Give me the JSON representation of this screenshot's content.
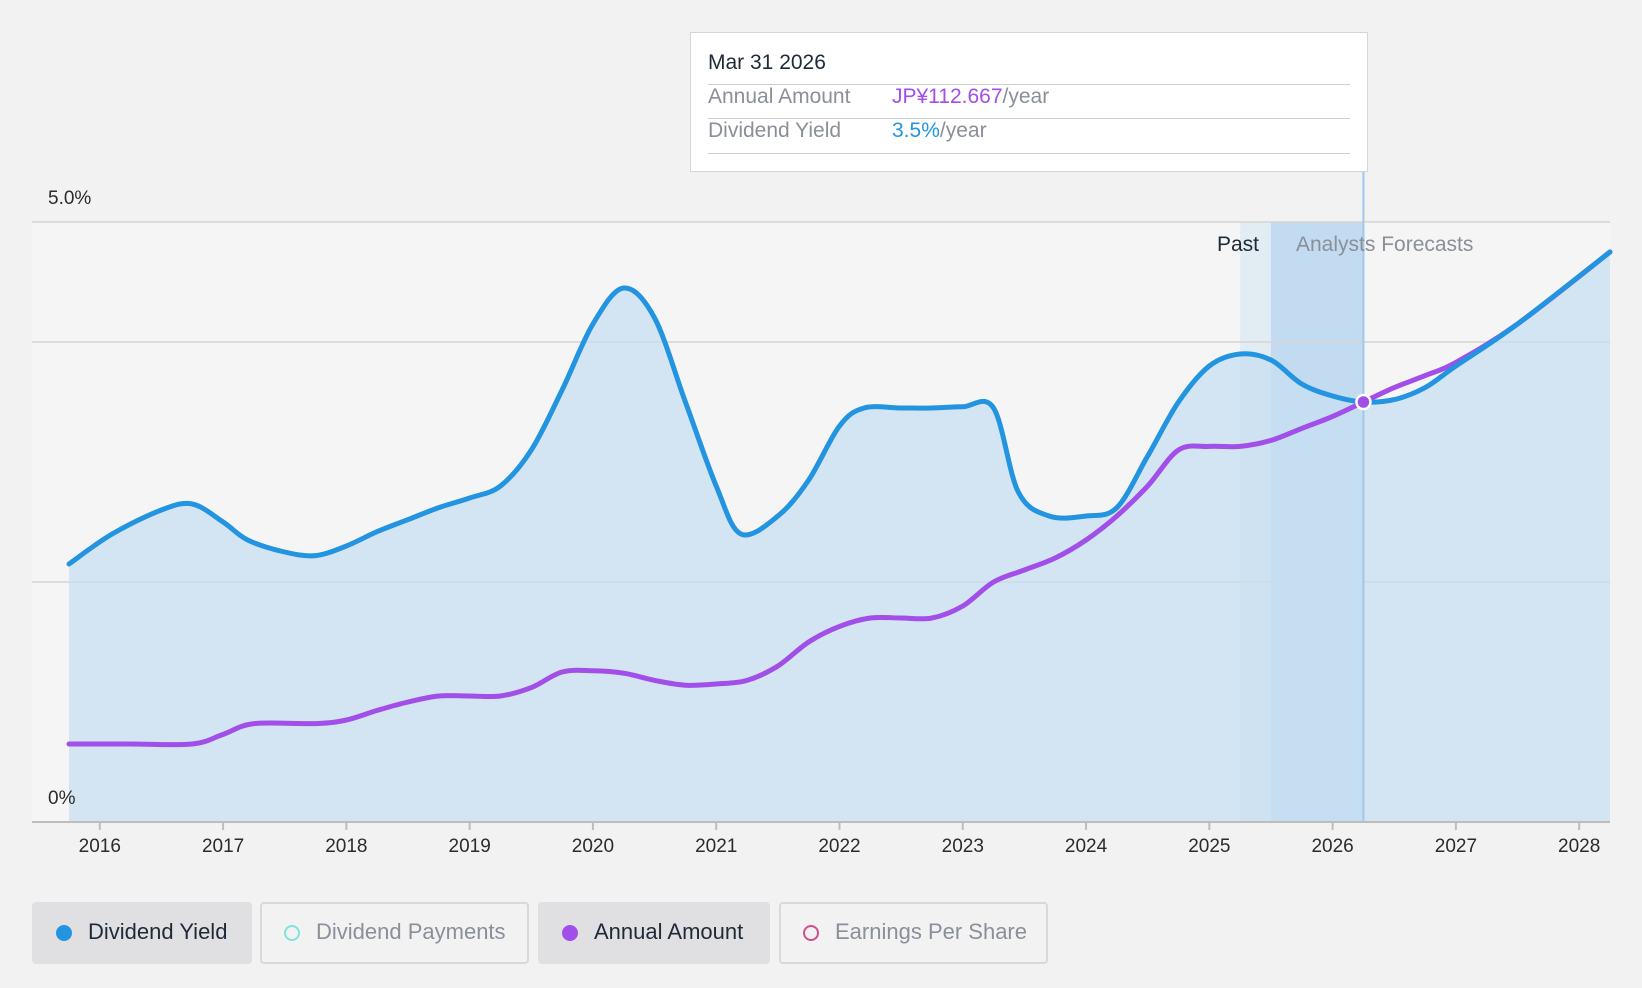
{
  "tooltip": {
    "date": "Mar 31 2026",
    "rows": [
      {
        "label": "Annual Amount",
        "value": "JP¥112.667",
        "unit": "/year",
        "color": "#a24ee8"
      },
      {
        "label": "Dividend Yield",
        "value": "3.5%",
        "unit": "/year",
        "color": "#2394df"
      }
    ]
  },
  "period_labels": {
    "past": "Past",
    "forecast": "Analysts Forecasts"
  },
  "legend": [
    {
      "label": "Dividend Yield",
      "color": "#2394df",
      "active": true
    },
    {
      "label": "Dividend Payments",
      "color": "#7fe3d6",
      "active": false
    },
    {
      "label": "Annual Amount",
      "color": "#a24ee8",
      "active": true
    },
    {
      "label": "Earnings Per Share",
      "color": "#d14f8c",
      "active": false
    }
  ],
  "colors": {
    "yield": "#2394df",
    "amount": "#a24ee8",
    "area": "#c7dff1",
    "grid": "#d4d4d4"
  },
  "chart_data": {
    "type": "line",
    "y_tick_labels": [
      "0%",
      "5.0%"
    ],
    "ylim": [
      0,
      5.0
    ],
    "x_ticks": [
      "2016",
      "2017",
      "2018",
      "2019",
      "2020",
      "2021",
      "2022",
      "2023",
      "2024",
      "2025",
      "2026",
      "2027",
      "2028"
    ],
    "xlim": [
      2015.45,
      2028.25
    ],
    "past_end": 2025.25,
    "forecast_start": 2025.5,
    "highlight_x": 2026.25,
    "grid_values": [
      2.0,
      4.0
    ],
    "series": [
      {
        "name": "Dividend Yield",
        "x": [
          2015.75,
          2016.1,
          2016.5,
          2016.75,
          2017.0,
          2017.2,
          2017.5,
          2017.75,
          2018.0,
          2018.25,
          2018.5,
          2018.75,
          2019.0,
          2019.25,
          2019.5,
          2019.75,
          2020.0,
          2020.25,
          2020.5,
          2020.75,
          2021.0,
          2021.2,
          2021.5,
          2021.75,
          2022.0,
          2022.2,
          2022.5,
          2022.75,
          2023.0,
          2023.25,
          2023.45,
          2023.7,
          2024.0,
          2024.25,
          2024.5,
          2024.75,
          2025.0,
          2025.25,
          2025.5,
          2025.75,
          2026.0,
          2026.25,
          2026.5,
          2026.75,
          2027.0,
          2027.5,
          2028.25
        ],
        "y": [
          2.15,
          2.4,
          2.6,
          2.65,
          2.5,
          2.35,
          2.25,
          2.22,
          2.3,
          2.42,
          2.52,
          2.62,
          2.7,
          2.8,
          3.1,
          3.6,
          4.15,
          4.45,
          4.2,
          3.5,
          2.8,
          2.4,
          2.55,
          2.85,
          3.3,
          3.45,
          3.45,
          3.45,
          3.46,
          3.45,
          2.75,
          2.55,
          2.55,
          2.62,
          3.05,
          3.5,
          3.8,
          3.9,
          3.85,
          3.65,
          3.55,
          3.5,
          3.52,
          3.62,
          3.8,
          4.15,
          4.75
        ]
      },
      {
        "name": "Annual Amount",
        "x": [
          2015.75,
          2016.25,
          2016.75,
          2017.0,
          2017.25,
          2017.75,
          2018.0,
          2018.25,
          2018.5,
          2018.75,
          2019.0,
          2019.25,
          2019.5,
          2019.75,
          2020.0,
          2020.25,
          2020.5,
          2020.75,
          2021.0,
          2021.25,
          2021.5,
          2021.75,
          2022.0,
          2022.25,
          2022.5,
          2022.75,
          2023.0,
          2023.25,
          2023.5,
          2023.75,
          2024.0,
          2024.25,
          2024.5,
          2024.75,
          2025.0,
          2025.25,
          2025.5,
          2025.75,
          2026.0,
          2026.25,
          2026.5,
          2026.75,
          2027.0,
          2027.5,
          2028.25
        ],
        "y": [
          0.65,
          0.65,
          0.65,
          0.73,
          0.82,
          0.82,
          0.85,
          0.93,
          1.0,
          1.05,
          1.05,
          1.05,
          1.12,
          1.25,
          1.26,
          1.24,
          1.18,
          1.14,
          1.15,
          1.18,
          1.3,
          1.5,
          1.63,
          1.7,
          1.7,
          1.7,
          1.8,
          2.0,
          2.1,
          2.2,
          2.35,
          2.55,
          2.8,
          3.1,
          3.13,
          3.13,
          3.18,
          3.28,
          3.38,
          3.5,
          3.62,
          3.72,
          3.83,
          4.15,
          4.75
        ]
      }
    ]
  }
}
